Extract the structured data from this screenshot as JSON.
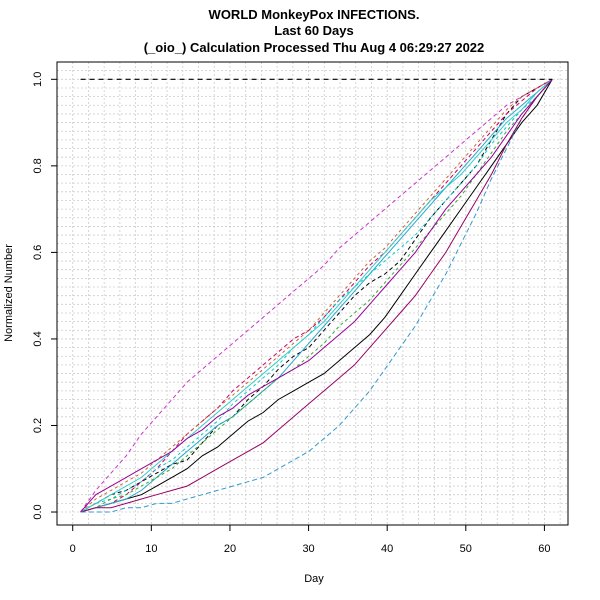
{
  "chart_data": {
    "type": "line",
    "title_lines": [
      "WORLD MonkeyPox INFECTIONS.",
      "Last 60 Days",
      "(_oio_) Calculation Processed  Thu Aug  4 06:29:27 2022"
    ],
    "xlabel": "Day",
    "ylabel": "Normalized Number",
    "xlim": [
      -2,
      63
    ],
    "ylim": [
      -0.03,
      1.04
    ],
    "x_ticks": [
      0,
      10,
      20,
      30,
      40,
      50,
      60
    ],
    "x_tick_labels": [
      "0",
      "10",
      "20",
      "30",
      "40",
      "50",
      "60"
    ],
    "y_ticks": [
      0.0,
      0.2,
      0.4,
      0.6,
      0.8,
      1.0
    ],
    "y_tick_labels": [
      "0.0",
      "0.2",
      "0.4",
      "0.6",
      "0.8",
      "1.0"
    ],
    "grid": true,
    "reference_line": {
      "y": 1.0,
      "x_from": 1,
      "x_to": 61
    },
    "series": [
      {
        "color": "#000000",
        "dash": "",
        "values": [
          0,
          0.01,
          0.02,
          0.03,
          0.04,
          0.06,
          0.08,
          0.1,
          0.13,
          0.15,
          0.18,
          0.21,
          0.23,
          0.26,
          0.28,
          0.3,
          0.32,
          0.35,
          0.38,
          0.41,
          0.45,
          0.5,
          0.55,
          0.6,
          0.65,
          0.7,
          0.75,
          0.8,
          0.85,
          0.9,
          0.94,
          1.0
        ]
      },
      {
        "color": "#000000",
        "dash": "4,3",
        "values": [
          0,
          0.02,
          0.04,
          0.05,
          0.07,
          0.09,
          0.11,
          0.12,
          0.16,
          0.2,
          0.22,
          0.26,
          0.29,
          0.33,
          0.36,
          0.38,
          0.42,
          0.46,
          0.5,
          0.53,
          0.55,
          0.58,
          0.63,
          0.68,
          0.72,
          0.76,
          0.8,
          0.86,
          0.92,
          0.96,
          0.98,
          1.0
        ]
      },
      {
        "color": "#cc0066",
        "dash": "4,3",
        "values": [
          0,
          0.01,
          0.02,
          0.04,
          0.07,
          0.1,
          0.14,
          0.18,
          0.21,
          0.24,
          0.28,
          0.31,
          0.34,
          0.37,
          0.4,
          0.42,
          0.45,
          0.49,
          0.53,
          0.57,
          0.6,
          0.64,
          0.68,
          0.72,
          0.76,
          0.8,
          0.84,
          0.88,
          0.92,
          0.95,
          0.98,
          1.0
        ]
      },
      {
        "color": "#cc33cc",
        "dash": "4,3",
        "values": [
          0,
          0.05,
          0.09,
          0.13,
          0.18,
          0.22,
          0.26,
          0.3,
          0.33,
          0.36,
          0.39,
          0.42,
          0.45,
          0.48,
          0.51,
          0.54,
          0.57,
          0.61,
          0.64,
          0.67,
          0.7,
          0.73,
          0.76,
          0.79,
          0.82,
          0.85,
          0.88,
          0.91,
          0.94,
          0.96,
          0.98,
          1.0
        ]
      },
      {
        "color": "#22aacc",
        "dash": "",
        "values": [
          0,
          0.01,
          0.02,
          0.03,
          0.05,
          0.08,
          0.11,
          0.14,
          0.17,
          0.2,
          0.22,
          0.25,
          0.28,
          0.31,
          0.35,
          0.39,
          0.43,
          0.47,
          0.51,
          0.55,
          0.59,
          0.63,
          0.67,
          0.71,
          0.75,
          0.79,
          0.83,
          0.87,
          0.91,
          0.94,
          0.97,
          1.0
        ]
      },
      {
        "color": "#00cccc",
        "dash": "3,3",
        "values": [
          0,
          0.02,
          0.03,
          0.05,
          0.07,
          0.1,
          0.12,
          0.15,
          0.18,
          0.21,
          0.25,
          0.28,
          0.31,
          0.34,
          0.38,
          0.41,
          0.45,
          0.49,
          0.52,
          0.55,
          0.58,
          0.61,
          0.64,
          0.68,
          0.72,
          0.76,
          0.8,
          0.85,
          0.89,
          0.93,
          0.96,
          1.0
        ]
      },
      {
        "color": "#33aa33",
        "dash": "3,3",
        "values": [
          0,
          0.01,
          0.03,
          0.04,
          0.06,
          0.08,
          0.1,
          0.13,
          0.16,
          0.19,
          0.22,
          0.25,
          0.28,
          0.31,
          0.33,
          0.36,
          0.39,
          0.43,
          0.46,
          0.49,
          0.53,
          0.57,
          0.61,
          0.65,
          0.69,
          0.73,
          0.78,
          0.83,
          0.88,
          0.92,
          0.96,
          1.0
        ]
      },
      {
        "color": "#3399cc",
        "dash": "5,3",
        "values": [
          0,
          0.0,
          0.0,
          0.01,
          0.01,
          0.02,
          0.02,
          0.03,
          0.04,
          0.05,
          0.06,
          0.07,
          0.08,
          0.1,
          0.12,
          0.14,
          0.17,
          0.2,
          0.24,
          0.28,
          0.33,
          0.38,
          0.43,
          0.49,
          0.55,
          0.62,
          0.69,
          0.77,
          0.84,
          0.91,
          0.96,
          1.0
        ]
      },
      {
        "color": "#990066",
        "dash": "",
        "values": [
          0,
          0.01,
          0.01,
          0.02,
          0.03,
          0.04,
          0.05,
          0.06,
          0.08,
          0.1,
          0.12,
          0.14,
          0.16,
          0.19,
          0.22,
          0.25,
          0.28,
          0.31,
          0.34,
          0.38,
          0.42,
          0.46,
          0.5,
          0.55,
          0.6,
          0.66,
          0.72,
          0.78,
          0.85,
          0.91,
          0.96,
          1.0
        ]
      },
      {
        "color": "#cc6633",
        "dash": "3,3",
        "values": [
          0,
          0.03,
          0.05,
          0.07,
          0.09,
          0.12,
          0.15,
          0.18,
          0.21,
          0.24,
          0.27,
          0.3,
          0.33,
          0.36,
          0.39,
          0.42,
          0.46,
          0.5,
          0.54,
          0.58,
          0.61,
          0.65,
          0.69,
          0.73,
          0.77,
          0.81,
          0.85,
          0.89,
          0.93,
          0.96,
          0.98,
          1.0
        ]
      },
      {
        "color": "#33cccc",
        "dash": "",
        "values": [
          0,
          0.02,
          0.04,
          0.06,
          0.08,
          0.11,
          0.14,
          0.17,
          0.2,
          0.23,
          0.26,
          0.29,
          0.32,
          0.35,
          0.38,
          0.41,
          0.44,
          0.48,
          0.52,
          0.56,
          0.6,
          0.64,
          0.68,
          0.72,
          0.75,
          0.78,
          0.82,
          0.86,
          0.9,
          0.93,
          0.97,
          1.0
        ]
      },
      {
        "color": "#990099",
        "dash": "",
        "values": [
          0,
          0.04,
          0.06,
          0.08,
          0.1,
          0.12,
          0.14,
          0.17,
          0.19,
          0.22,
          0.24,
          0.27,
          0.29,
          0.31,
          0.33,
          0.35,
          0.38,
          0.41,
          0.44,
          0.48,
          0.52,
          0.56,
          0.6,
          0.65,
          0.7,
          0.74,
          0.78,
          0.82,
          0.87,
          0.92,
          0.96,
          1.0
        ]
      }
    ]
  }
}
